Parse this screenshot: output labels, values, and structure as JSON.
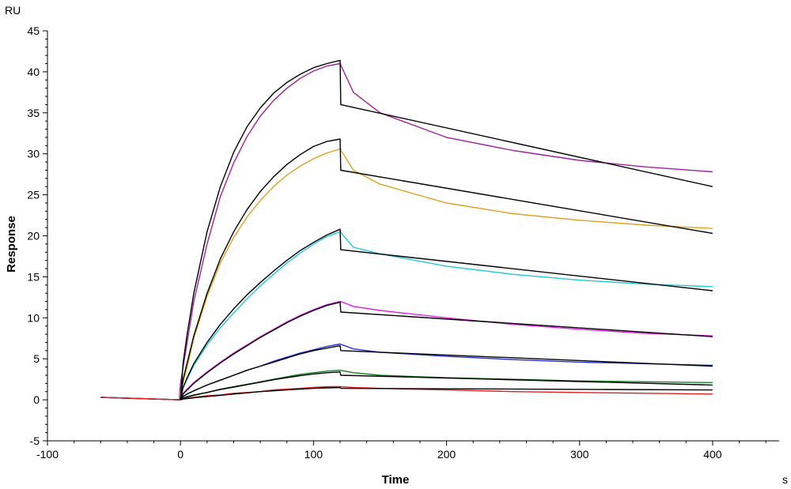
{
  "chart_data": {
    "type": "line",
    "title": "",
    "xlabel": "Time",
    "ylabel": "Response",
    "x_unit": "s",
    "y_unit": "RU",
    "xlim": [
      -100,
      450
    ],
    "ylim": [
      -5,
      45
    ],
    "x_ticks": [
      -100,
      0,
      100,
      200,
      300,
      400
    ],
    "y_ticks": [
      -5,
      0,
      5,
      10,
      15,
      20,
      25,
      30,
      35,
      40,
      45
    ],
    "grid": false,
    "legend": "none",
    "series": [
      {
        "color": "#a020a0",
        "x": [
          -60,
          -1,
          0,
          2,
          5,
          10,
          20,
          30,
          40,
          50,
          60,
          70,
          80,
          90,
          100,
          110,
          120,
          130,
          150,
          200,
          250,
          300,
          350,
          400
        ],
        "y": [
          0.3,
          0,
          2,
          4,
          7,
          12,
          19,
          24.8,
          28.9,
          32.1,
          34.6,
          36.5,
          38,
          39.2,
          40.1,
          40.7,
          41,
          37.5,
          35,
          32,
          30.4,
          29.2,
          28.4,
          27.8
        ]
      },
      {
        "color": "#e0a020",
        "x": [
          -60,
          -1,
          0,
          2,
          5,
          10,
          20,
          30,
          40,
          50,
          60,
          70,
          80,
          90,
          100,
          110,
          120,
          130,
          150,
          200,
          250,
          300,
          350,
          400
        ],
        "y": [
          0.3,
          0,
          1,
          2.2,
          4,
          7.5,
          12.6,
          16.7,
          19.8,
          22.3,
          24.3,
          26,
          27.4,
          28.5,
          29.4,
          30.1,
          30.6,
          28,
          26.3,
          24,
          22.7,
          21.9,
          21.3,
          20.9
        ]
      },
      {
        "color": "#20c8d8",
        "x": [
          -60,
          -1,
          0,
          2,
          5,
          10,
          20,
          30,
          40,
          50,
          60,
          70,
          80,
          90,
          100,
          110,
          120,
          130,
          150,
          200,
          250,
          300,
          350,
          400
        ],
        "y": [
          0.3,
          0,
          0.5,
          1.5,
          2.5,
          4.2,
          6.7,
          8.8,
          10.6,
          12.3,
          13.9,
          15.3,
          16.7,
          17.9,
          19,
          19.9,
          20.5,
          18.6,
          17.8,
          16.3,
          15.3,
          14.6,
          14.1,
          13.8
        ]
      },
      {
        "color": "#e020e0",
        "x": [
          -60,
          -1,
          0,
          2,
          5,
          10,
          20,
          30,
          40,
          50,
          60,
          70,
          80,
          90,
          100,
          110,
          120,
          130,
          150,
          200,
          250,
          300,
          350,
          400
        ],
        "y": [
          0.3,
          0,
          0.2,
          0.8,
          1.3,
          2.1,
          3.4,
          4.6,
          5.7,
          6.7,
          7.7,
          8.6,
          9.5,
          10.3,
          11,
          11.6,
          12,
          11.4,
          10.9,
          10,
          9.2,
          8.6,
          8.1,
          7.8
        ]
      },
      {
        "color": "#2030d0",
        "x": [
          -60,
          -1,
          0,
          2,
          5,
          10,
          20,
          30,
          40,
          50,
          60,
          70,
          80,
          90,
          100,
          110,
          120,
          130,
          150,
          200,
          250,
          300,
          350,
          400
        ],
        "y": [
          0.3,
          0,
          0.1,
          0.4,
          0.7,
          1.1,
          1.8,
          2.4,
          3,
          3.6,
          4.1,
          4.7,
          5.2,
          5.7,
          6.1,
          6.5,
          6.8,
          6.2,
          5.8,
          5.3,
          4.9,
          4.6,
          4.4,
          4.2
        ]
      },
      {
        "color": "#108020",
        "x": [
          -60,
          -1,
          0,
          2,
          5,
          10,
          20,
          30,
          40,
          50,
          60,
          70,
          80,
          90,
          100,
          110,
          120,
          130,
          150,
          200,
          250,
          300,
          350,
          400
        ],
        "y": [
          0.3,
          0,
          0,
          0.2,
          0.4,
          0.6,
          0.9,
          1.3,
          1.6,
          1.9,
          2.2,
          2.5,
          2.8,
          3.1,
          3.3,
          3.5,
          3.6,
          3.3,
          3,
          2.7,
          2.5,
          2.3,
          2.2,
          2.1
        ]
      },
      {
        "color": "#e02020",
        "x": [
          -60,
          -1,
          0,
          2,
          5,
          10,
          20,
          30,
          40,
          50,
          60,
          70,
          80,
          90,
          100,
          110,
          120,
          130,
          150,
          200,
          250,
          300,
          350,
          400
        ],
        "y": [
          0.3,
          0,
          0,
          0.1,
          0.2,
          0.3,
          0.5,
          0.6,
          0.8,
          0.9,
          1,
          1.2,
          1.3,
          1.4,
          1.5,
          1.6,
          1.6,
          1.5,
          1.4,
          1.2,
          1,
          0.9,
          0.8,
          0.7
        ]
      }
    ],
    "fits": [
      {
        "x": [
          0,
          2,
          5,
          10,
          20,
          30,
          40,
          50,
          60,
          70,
          80,
          90,
          100,
          110,
          120,
          120.5,
          400
        ],
        "y": [
          0,
          4.5,
          8,
          13,
          20.5,
          26,
          30.2,
          33.3,
          35.6,
          37.4,
          38.7,
          39.7,
          40.5,
          41,
          41.4,
          36,
          26
        ]
      },
      {
        "x": [
          0,
          2,
          5,
          10,
          20,
          30,
          40,
          50,
          60,
          70,
          80,
          90,
          100,
          110,
          120,
          120.5,
          400
        ],
        "y": [
          0,
          2.5,
          4.5,
          7.8,
          13,
          17.2,
          20.5,
          23.2,
          25.4,
          27.2,
          28.7,
          29.9,
          30.9,
          31.5,
          31.8,
          28,
          20.3
        ]
      },
      {
        "x": [
          0,
          2,
          5,
          10,
          20,
          30,
          40,
          50,
          60,
          70,
          80,
          90,
          100,
          110,
          120,
          120.5,
          400
        ],
        "y": [
          0,
          1.5,
          2.7,
          4.4,
          7,
          9.2,
          11.1,
          12.8,
          14.3,
          15.7,
          17,
          18.2,
          19.2,
          20.1,
          20.8,
          18.3,
          13.3
        ]
      },
      {
        "x": [
          0,
          2,
          5,
          10,
          20,
          30,
          40,
          50,
          60,
          70,
          80,
          90,
          100,
          110,
          120,
          120.5,
          400
        ],
        "y": [
          0,
          0.7,
          1.2,
          2,
          3.3,
          4.5,
          5.6,
          6.6,
          7.6,
          8.5,
          9.4,
          10.2,
          10.9,
          11.5,
          11.9,
          10.7,
          7.7
        ]
      },
      {
        "x": [
          0,
          2,
          5,
          10,
          20,
          30,
          40,
          50,
          60,
          70,
          80,
          90,
          100,
          110,
          120,
          120.5,
          400
        ],
        "y": [
          0,
          0.4,
          0.7,
          1.1,
          1.8,
          2.4,
          3,
          3.6,
          4.1,
          4.6,
          5.1,
          5.6,
          6,
          6.3,
          6.6,
          6,
          4.1
        ]
      },
      {
        "x": [
          0,
          2,
          5,
          10,
          20,
          30,
          40,
          50,
          60,
          70,
          80,
          90,
          100,
          110,
          120,
          120.5,
          400
        ],
        "y": [
          0,
          0.2,
          0.35,
          0.55,
          0.9,
          1.25,
          1.55,
          1.85,
          2.15,
          2.45,
          2.7,
          2.95,
          3.15,
          3.3,
          3.4,
          3,
          1.8
        ]
      },
      {
        "x": [
          0,
          2,
          5,
          10,
          20,
          30,
          40,
          50,
          60,
          70,
          80,
          90,
          100,
          110,
          120,
          120.5,
          400
        ],
        "y": [
          0,
          0.1,
          0.15,
          0.25,
          0.4,
          0.55,
          0.7,
          0.85,
          1,
          1.1,
          1.2,
          1.3,
          1.4,
          1.45,
          1.5,
          1.4,
          1.2
        ]
      }
    ]
  }
}
